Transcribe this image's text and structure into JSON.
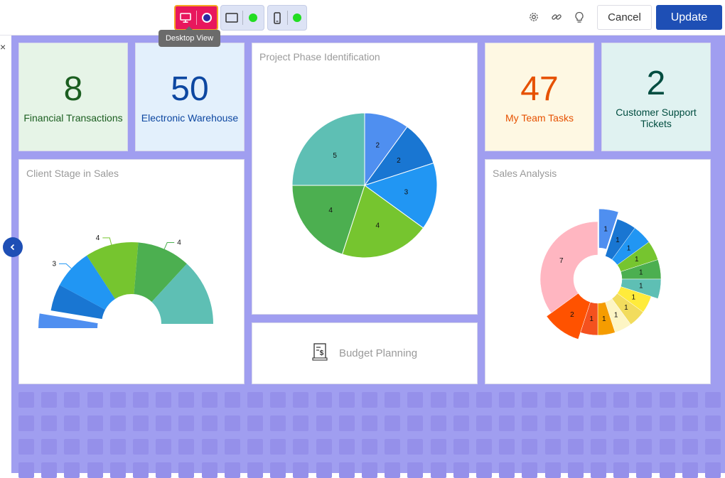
{
  "toolbar": {
    "tooltip": "Desktop View",
    "cancel_label": "Cancel",
    "update_label": "Update",
    "icons": [
      "desktop-icon",
      "tablet-icon",
      "mobile-icon",
      "gear-icon",
      "link-icon",
      "lightbulb-icon"
    ]
  },
  "sidebar": {
    "close_label": "×"
  },
  "tiles": {
    "financial": {
      "value": "8",
      "label": "Financial Transactions",
      "bg": "#e6f4e7",
      "color": "#1b5e20"
    },
    "warehouse": {
      "value": "50",
      "label": "Electronic Warehouse",
      "bg": "#e3f0fc",
      "color": "#0d47a1"
    },
    "tasks": {
      "value": "47",
      "label": "My Team Tasks",
      "bg": "#fef8e3",
      "color": "#e65100"
    },
    "tickets": {
      "value": "2",
      "label": "Customer Support Tickets",
      "bg": "#e0f2f1",
      "color": "#004d40"
    }
  },
  "budget": {
    "label": "Budget Planning"
  },
  "chart_data": [
    {
      "type": "pie",
      "title": "Client Stage in Sales",
      "shape": "half-donut",
      "slices": [
        {
          "value": 1,
          "color": "#4f8ff0",
          "label": ""
        },
        {
          "value": 2,
          "color": "#1976d2",
          "label": ""
        },
        {
          "value": 3,
          "color": "#2196f3",
          "label": "3"
        },
        {
          "value": 4,
          "color": "#76c52f",
          "label": "4"
        },
        {
          "value": 4,
          "color": "#4caf50",
          "label": "4"
        },
        {
          "value": 5,
          "color": "#5ebfb4",
          "label": ""
        }
      ]
    },
    {
      "type": "pie",
      "title": "Project Phase Identification",
      "slices": [
        {
          "value": 2,
          "color": "#4f8ff0",
          "label": "2"
        },
        {
          "value": 2,
          "color": "#1976d2",
          "label": "2"
        },
        {
          "value": 3,
          "color": "#2196f3",
          "label": "3"
        },
        {
          "value": 4,
          "color": "#76c52f",
          "label": "4"
        },
        {
          "value": 4,
          "color": "#4caf50",
          "label": "4"
        },
        {
          "value": 5,
          "color": "#5ebfb4",
          "label": "5"
        }
      ]
    },
    {
      "type": "pie",
      "title": "Sales Analysis",
      "shape": "donut",
      "slices": [
        {
          "value": 1,
          "color": "#4f8ff0",
          "label": "1"
        },
        {
          "value": 1,
          "color": "#1976d2",
          "label": "1"
        },
        {
          "value": 1,
          "color": "#2196f3",
          "label": "1"
        },
        {
          "value": 1,
          "color": "#76c52f",
          "label": "1"
        },
        {
          "value": 1,
          "color": "#4caf50",
          "label": "1"
        },
        {
          "value": 1,
          "color": "#5ebfb4",
          "label": "1"
        },
        {
          "value": 1,
          "color": "#ffeb3b",
          "label": "1"
        },
        {
          "value": 1,
          "color": "#f2dc5d",
          "label": "1"
        },
        {
          "value": 1,
          "color": "#fdf5c4",
          "label": "1"
        },
        {
          "value": 1,
          "color": "#f59c00",
          "label": "1"
        },
        {
          "value": 1,
          "color": "#f4511e",
          "label": "1"
        },
        {
          "value": 2,
          "color": "#ff5200",
          "label": "2"
        },
        {
          "value": 7,
          "color": "#ffb6c1",
          "label": "7"
        }
      ]
    }
  ]
}
